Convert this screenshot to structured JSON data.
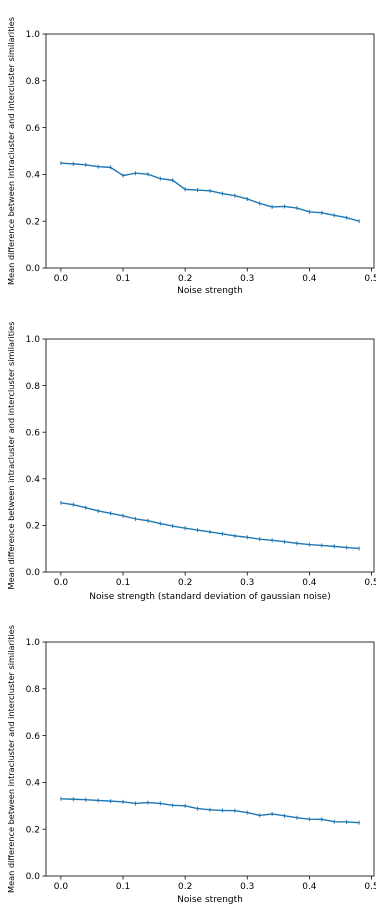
{
  "chart_data": [
    {
      "type": "line",
      "xlabel": "Noise strength",
      "ylabel": "Mean difference between intracluster and intercluster similarities",
      "xlim": [
        -0.024,
        0.504
      ],
      "ylim": [
        0,
        1.0
      ],
      "xticks": [
        "0.0",
        "0.1",
        "0.2",
        "0.3",
        "0.4",
        "0.5"
      ],
      "yticks": [
        "0.0",
        "0.2",
        "0.4",
        "0.6",
        "0.8",
        "1.0"
      ],
      "grid": false,
      "color": "#1f77b4",
      "series": [
        {
          "x": [
            0.0,
            0.02,
            0.04,
            0.06,
            0.08,
            0.1,
            0.12,
            0.14,
            0.16,
            0.18,
            0.2,
            0.22,
            0.24,
            0.26,
            0.28,
            0.3,
            0.32,
            0.34,
            0.36,
            0.38,
            0.4,
            0.42,
            0.44,
            0.46,
            0.48
          ],
          "y": [
            0.448,
            0.445,
            0.441,
            0.433,
            0.43,
            0.395,
            0.405,
            0.401,
            0.382,
            0.375,
            0.336,
            0.333,
            0.33,
            0.318,
            0.309,
            0.295,
            0.276,
            0.261,
            0.263,
            0.256,
            0.24,
            0.236,
            0.225,
            0.215,
            0.2
          ]
        }
      ]
    },
    {
      "type": "line",
      "xlabel": "Noise strength (standard deviation of gaussian noise)",
      "ylabel": "Mean difference between intracluster and intercluster similarities",
      "xlim": [
        -0.024,
        0.504
      ],
      "ylim": [
        0,
        1.0
      ],
      "xticks": [
        "0.0",
        "0.1",
        "0.2",
        "0.3",
        "0.4",
        "0.5"
      ],
      "yticks": [
        "0.0",
        "0.2",
        "0.4",
        "0.6",
        "0.8",
        "1.0"
      ],
      "grid": false,
      "color": "#1f77b4",
      "series": [
        {
          "x": [
            0.0,
            0.02,
            0.04,
            0.06,
            0.08,
            0.1,
            0.12,
            0.14,
            0.16,
            0.18,
            0.2,
            0.22,
            0.24,
            0.26,
            0.28,
            0.3,
            0.32,
            0.34,
            0.36,
            0.38,
            0.4,
            0.42,
            0.44,
            0.46,
            0.48
          ],
          "y": [
            0.297,
            0.289,
            0.276,
            0.262,
            0.252,
            0.241,
            0.228,
            0.22,
            0.208,
            0.197,
            0.188,
            0.18,
            0.172,
            0.164,
            0.155,
            0.149,
            0.141,
            0.136,
            0.13,
            0.123,
            0.118,
            0.114,
            0.11,
            0.105,
            0.101
          ]
        }
      ]
    },
    {
      "type": "line",
      "xlabel": "Noise strength",
      "ylabel": "Mean difference between intracluster and intercluster similarities",
      "xlim": [
        -0.024,
        0.504
      ],
      "ylim": [
        0,
        1.0
      ],
      "xticks": [
        "0.0",
        "0.1",
        "0.2",
        "0.3",
        "0.4",
        "0.5"
      ],
      "yticks": [
        "0.0",
        "0.2",
        "0.4",
        "0.6",
        "0.8",
        "1.0"
      ],
      "grid": false,
      "color": "#1f77b4",
      "series": [
        {
          "x": [
            0.0,
            0.02,
            0.04,
            0.06,
            0.08,
            0.1,
            0.12,
            0.14,
            0.16,
            0.18,
            0.2,
            0.22,
            0.24,
            0.26,
            0.28,
            0.3,
            0.32,
            0.34,
            0.36,
            0.38,
            0.4,
            0.42,
            0.44,
            0.46,
            0.48
          ],
          "y": [
            0.33,
            0.328,
            0.326,
            0.323,
            0.32,
            0.317,
            0.31,
            0.314,
            0.31,
            0.302,
            0.3,
            0.288,
            0.283,
            0.28,
            0.279,
            0.271,
            0.259,
            0.265,
            0.257,
            0.249,
            0.243,
            0.242,
            0.232,
            0.231,
            0.228
          ]
        }
      ]
    }
  ]
}
